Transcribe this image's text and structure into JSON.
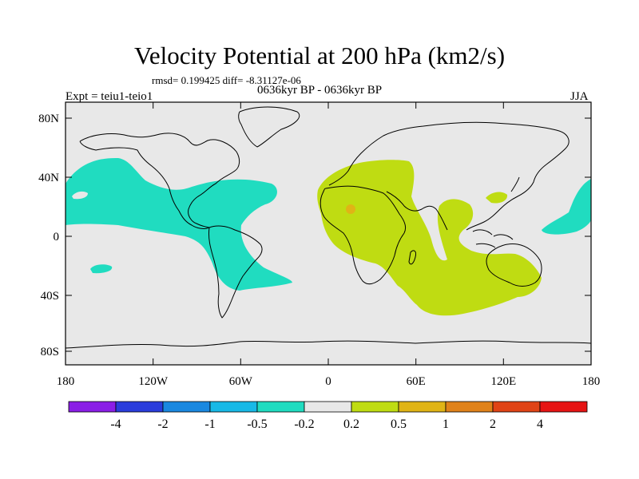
{
  "title": "Velocity Potential at 200 hPa (km2/s)",
  "stats": "rmsd= 0.199425  diff= -8.31127e-06",
  "period": "0636kyr BP - 0636kyr BP",
  "experiment": "Expt = teiu1-teio1",
  "season": "JJA",
  "lat_labels": [
    "80N",
    "40N",
    "0",
    "40S",
    "80S"
  ],
  "lon_labels": [
    "180",
    "120W",
    "60W",
    "0",
    "60E",
    "120E",
    "180"
  ],
  "colorbar": {
    "colors": [
      "#8a1ee6",
      "#2a3ddb",
      "#1a88e0",
      "#18b9e6",
      "#20dcc0",
      "#e8e8e8",
      "#bfdc12",
      "#e0b416",
      "#e0821a",
      "#e04416",
      "#e61414"
    ],
    "labels": [
      "-4",
      "-2",
      "-1",
      "-0.5",
      "-0.2",
      "0.2",
      "0.5",
      "1",
      "2",
      "4"
    ]
  },
  "map_colors": {
    "background": "#e8e8e8",
    "negative": "#20dcc0",
    "positive": "#bfdc12",
    "positive_strong": "#e0b416",
    "coast": "#000000"
  }
}
